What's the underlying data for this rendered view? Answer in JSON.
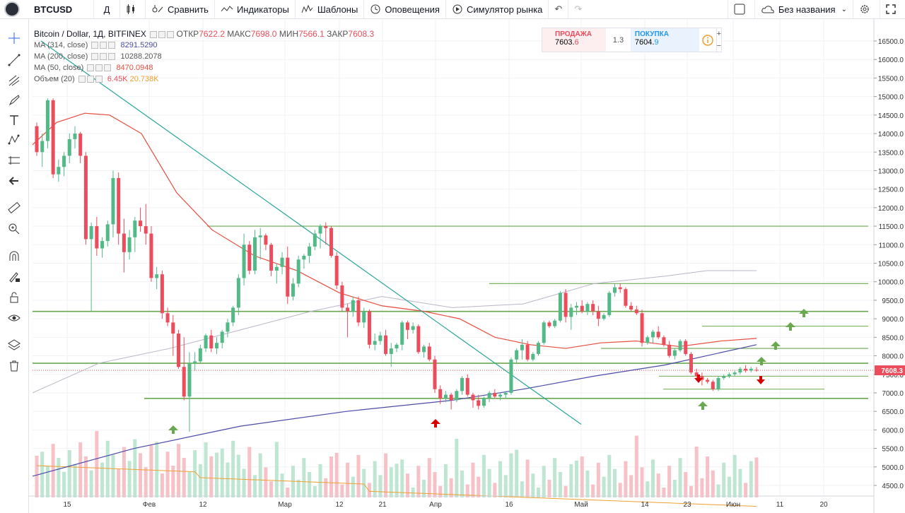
{
  "toolbar": {
    "symbol": "BTCUSD",
    "interval": "Д",
    "compare": "Сравнить",
    "indicators": "Индикаторы",
    "templates": "Шаблоны",
    "alerts": "Оповещения",
    "simulator": "Симулятор рынка",
    "layout_name": "Без названия"
  },
  "legend": {
    "title": "Bitcoin / Dollar, 1Д, BITFINEX",
    "open_label": "ОТКР",
    "open": "7622.2",
    "high_label": "МАКС",
    "high": "7698.0",
    "low_label": "МИН",
    "low": "7566.1",
    "close_label": "ЗАКР",
    "close": "7608.3",
    "ma314_label": "MA (314, close)",
    "ma314": "8291.5290",
    "ma200_label": "MA (200, close)",
    "ma200": "10288.2078",
    "ma50_label": "MA (50, close)",
    "ma50": "8470.0948",
    "vol_label": "Объем (20)",
    "vol1": "6.45K",
    "vol2": "20.738K"
  },
  "trade": {
    "sell_label": "ПРОДАЖА",
    "sell_main": "7603.",
    "sell_frac": "6",
    "spread": "1.3",
    "buy_label": "ПОКУПКА",
    "buy_main": "7604.",
    "buy_frac": "9"
  },
  "colors": {
    "up": "#53b987",
    "down": "#eb4d5c",
    "ma50": "#e74c3c",
    "ma200": "#b9b5c6",
    "ma314": "#4a4aa8",
    "hline": "#6aa84f",
    "trend": "#26a69a"
  },
  "chart_data": {
    "type": "candlestick",
    "price_axis": {
      "ticks": [
        4500,
        5000,
        5500,
        6000,
        6500,
        7000,
        7500,
        8000,
        8500,
        9000,
        9500,
        10000,
        10500,
        11000,
        11500,
        12000,
        12500,
        13000,
        13500,
        14000,
        14500,
        15000,
        15500,
        16000,
        16500
      ],
      "last_price": "7608.3"
    },
    "time_axis": {
      "ticks": [
        "15",
        "Фев",
        "12",
        "Мар",
        "12",
        "21",
        "Апр",
        "16",
        "Май",
        "14",
        "23",
        "Июн",
        "11",
        "20"
      ]
    },
    "horizontal_levels": [
      11500,
      9950,
      9200,
      8200,
      7800,
      6850
    ],
    "ohlc": [
      [
        14200,
        14300,
        13400,
        13500
      ],
      [
        13500,
        14000,
        13100,
        13800
      ],
      [
        13800,
        14950,
        13600,
        14900
      ],
      [
        14900,
        14950,
        12800,
        12900
      ],
      [
        12900,
        13300,
        12700,
        13100
      ],
      [
        13100,
        13500,
        12850,
        13400
      ],
      [
        13400,
        14000,
        13200,
        13850
      ],
      [
        13850,
        14200,
        13600,
        14000
      ],
      [
        14000,
        14050,
        13200,
        13400
      ],
      [
        13400,
        13500,
        11000,
        11150
      ],
      [
        11150,
        11600,
        9200,
        11500
      ],
      [
        11500,
        11750,
        10700,
        10900
      ],
      [
        10900,
        11200,
        10650,
        11100
      ],
      [
        11100,
        11650,
        10950,
        11550
      ],
      [
        11550,
        13000,
        11200,
        12800
      ],
      [
        12800,
        12950,
        11000,
        11300
      ],
      [
        11300,
        11700,
        10250,
        10800
      ],
      [
        10800,
        11400,
        10600,
        11200
      ],
      [
        11200,
        11750,
        10800,
        11650
      ],
      [
        11650,
        12000,
        11350,
        11500
      ],
      [
        11500,
        12100,
        11000,
        11300
      ],
      [
        11300,
        11500,
        10000,
        10100
      ],
      [
        10100,
        10400,
        9800,
        10200
      ],
      [
        10200,
        10300,
        9000,
        9150
      ],
      [
        9150,
        9300,
        8800,
        8900
      ],
      [
        8900,
        9100,
        8000,
        8600
      ],
      [
        8600,
        8700,
        7650,
        7700
      ],
      [
        7700,
        8500,
        6800,
        6900
      ],
      [
        6900,
        8100,
        5950,
        7800
      ],
      [
        7800,
        8100,
        7600,
        7850
      ],
      [
        7850,
        8300,
        7800,
        8200
      ],
      [
        8200,
        8600,
        8100,
        8550
      ],
      [
        8550,
        8700,
        8100,
        8200
      ],
      [
        8200,
        8500,
        8050,
        8350
      ],
      [
        8350,
        8700,
        8200,
        8650
      ],
      [
        8650,
        9000,
        8500,
        8900
      ],
      [
        8900,
        9350,
        8800,
        9300
      ],
      [
        9300,
        10200,
        9100,
        10100
      ],
      [
        10100,
        11300,
        9900,
        11000
      ],
      [
        11000,
        11100,
        10200,
        10300
      ],
      [
        10300,
        11400,
        10200,
        11200
      ],
      [
        11200,
        11450,
        10600,
        11250
      ],
      [
        11250,
        11300,
        10850,
        11000
      ],
      [
        11000,
        11050,
        10150,
        10300
      ],
      [
        10300,
        10500,
        9950,
        10400
      ],
      [
        10400,
        10800,
        10200,
        10650
      ],
      [
        10650,
        10950,
        9400,
        9600
      ],
      [
        9600,
        10100,
        9500,
        9950
      ],
      [
        9950,
        10700,
        9850,
        10600
      ],
      [
        10600,
        10750,
        10350,
        10700
      ],
      [
        10700,
        11050,
        10500,
        10950
      ],
      [
        10950,
        11400,
        10850,
        11300
      ],
      [
        11300,
        11550,
        10900,
        11500
      ],
      [
        11500,
        11600,
        11000,
        11450
      ],
      [
        11450,
        11500,
        10650,
        10700
      ],
      [
        10700,
        10800,
        9800,
        9900
      ],
      [
        9900,
        10000,
        9200,
        9300
      ],
      [
        9300,
        9400,
        8500,
        9200
      ],
      [
        9200,
        9600,
        9050,
        9500
      ],
      [
        9500,
        9600,
        8800,
        8900
      ],
      [
        8900,
        9300,
        8750,
        9200
      ],
      [
        9200,
        9250,
        8200,
        8300
      ],
      [
        8300,
        8600,
        8150,
        8400
      ],
      [
        8400,
        8650,
        8300,
        8550
      ],
      [
        8550,
        8700,
        8000,
        8050
      ],
      [
        8050,
        8350,
        7700,
        8200
      ],
      [
        8200,
        8350,
        8100,
        8300
      ],
      [
        8300,
        8950,
        8150,
        8900
      ],
      [
        8900,
        8950,
        8450,
        8700
      ],
      [
        8700,
        8900,
        8600,
        8800
      ],
      [
        8800,
        8850,
        8050,
        8100
      ],
      [
        8100,
        8300,
        7950,
        8250
      ],
      [
        8250,
        8350,
        7850,
        7900
      ],
      [
        7900,
        8000,
        7000,
        7100
      ],
      [
        7100,
        7200,
        6700,
        6850
      ],
      [
        6850,
        7050,
        6750,
        6950
      ],
      [
        6950,
        7000,
        6550,
        6800
      ],
      [
        6800,
        7100,
        6750,
        7050
      ],
      [
        7050,
        7450,
        6950,
        7400
      ],
      [
        7400,
        7500,
        6900,
        6950
      ],
      [
        6950,
        7000,
        6600,
        6800
      ],
      [
        6800,
        6950,
        6550,
        6650
      ],
      [
        6650,
        6900,
        6600,
        6850
      ],
      [
        6850,
        7050,
        6750,
        7000
      ],
      [
        7000,
        7100,
        6850,
        6900
      ],
      [
        6900,
        7000,
        6800,
        6950
      ],
      [
        6950,
        7050,
        6850,
        7000
      ],
      [
        7000,
        7950,
        6950,
        7900
      ],
      [
        7900,
        8200,
        7800,
        8150
      ],
      [
        8150,
        8450,
        7900,
        8300
      ],
      [
        8300,
        8400,
        7850,
        7900
      ],
      [
        7900,
        8100,
        7850,
        8050
      ],
      [
        8050,
        8400,
        8000,
        8350
      ],
      [
        8350,
        8950,
        8300,
        8900
      ],
      [
        8900,
        8950,
        8750,
        8800
      ],
      [
        8800,
        9000,
        8750,
        8950
      ],
      [
        8950,
        9750,
        8900,
        9700
      ],
      [
        9700,
        9800,
        8900,
        9050
      ],
      [
        9050,
        9400,
        8700,
        9300
      ],
      [
        9300,
        9450,
        9100,
        9350
      ],
      [
        9350,
        9500,
        9150,
        9200
      ],
      [
        9200,
        9450,
        9100,
        9400
      ],
      [
        9400,
        9500,
        9100,
        9200
      ],
      [
        9200,
        9350,
        8800,
        9000
      ],
      [
        9000,
        9150,
        8950,
        9100
      ],
      [
        9100,
        9750,
        9050,
        9700
      ],
      [
        9700,
        9950,
        9600,
        9850
      ],
      [
        9850,
        9950,
        9700,
        9800
      ],
      [
        9800,
        9850,
        9300,
        9350
      ],
      [
        9350,
        9450,
        9200,
        9250
      ],
      [
        9250,
        9350,
        9100,
        9150
      ],
      [
        9150,
        9250,
        8250,
        8350
      ],
      [
        8350,
        8550,
        8300,
        8500
      ],
      [
        8500,
        8700,
        8350,
        8650
      ],
      [
        8650,
        8800,
        8450,
        8500
      ],
      [
        8500,
        8550,
        8250,
        8300
      ],
      [
        8300,
        8400,
        7950,
        8000
      ],
      [
        8000,
        8200,
        7900,
        8150
      ],
      [
        8150,
        8450,
        8100,
        8400
      ],
      [
        8400,
        8450,
        8000,
        8050
      ],
      [
        8050,
        8100,
        7500,
        7550
      ],
      [
        7550,
        7650,
        7350,
        7450
      ],
      [
        7450,
        7550,
        7200,
        7350
      ],
      [
        7350,
        7400,
        7250,
        7300
      ],
      [
        7300,
        7350,
        7050,
        7100
      ],
      [
        7100,
        7450,
        7050,
        7400
      ],
      [
        7400,
        7500,
        7350,
        7450
      ],
      [
        7450,
        7550,
        7400,
        7500
      ],
      [
        7500,
        7600,
        7450,
        7550
      ],
      [
        7550,
        7700,
        7500,
        7650
      ],
      [
        7650,
        7750,
        7550,
        7600
      ],
      [
        7600,
        7700,
        7550,
        7650
      ],
      [
        7622,
        7698,
        7566,
        7608
      ]
    ]
  }
}
